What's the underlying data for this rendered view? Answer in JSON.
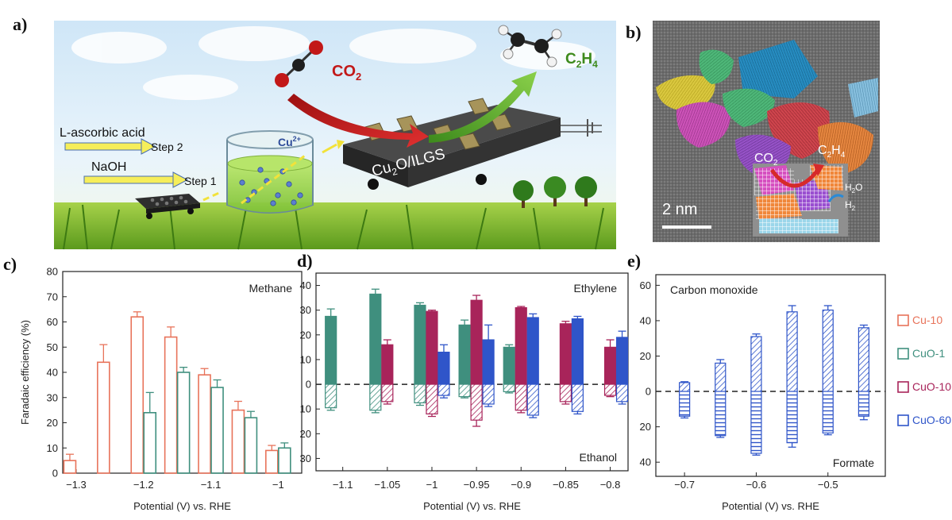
{
  "panels": {
    "a": "a)",
    "b": "b)",
    "c": "c)",
    "d": "d)",
    "e": "e)"
  },
  "scheme": {
    "co2_label": "CO",
    "co2_sub": "2",
    "c2h4_label": "C",
    "c2h4_sub1": "2",
    "c2h4_mid": "H",
    "c2h4_sub2": "4",
    "step2_reagent": "L-ascorbic acid",
    "step2_label": "Step 2",
    "step1_reagent": "NaOH",
    "step1_label": "Step 1",
    "cu_ion": "Cu",
    "cu_ion_sup": "2+",
    "cart_label_a": "Cu",
    "cart_label_sub": "2",
    "cart_label_b": "O/ILGS"
  },
  "tem": {
    "scale_bar": "2 nm",
    "co2": "CO",
    "co2_sub": "2",
    "c2h4": "C",
    "c2h4_sub": "2",
    "c2h4_h": "H",
    "c2h4_sub2": "4",
    "h2o": "H",
    "h2o_sub": "2",
    "h2o_o": "O",
    "h2": "H",
    "h2_sub": "2"
  },
  "legend": [
    {
      "label": "Cu-10",
      "color": "#e8735a"
    },
    {
      "label": "CuO-1",
      "color": "#3f8f7e"
    },
    {
      "label": "CuO-10",
      "color": "#a8245a"
    },
    {
      "label": "CuO-60",
      "color": "#2f55c9"
    }
  ],
  "chart_data": [
    {
      "id": "c",
      "type": "bar",
      "ylabel": "Faradaic efficiency (%)",
      "xlabel": "Potential (V) vs. RHE",
      "annotation": "Methane",
      "ylim": [
        0,
        80
      ],
      "yticks": [
        0,
        10,
        20,
        30,
        40,
        50,
        60,
        70,
        80
      ],
      "xlim": [
        -1.32,
        -0.965
      ],
      "xticks": [
        -1.3,
        -1.2,
        -1.1,
        -1
      ],
      "xtick_labels": [
        "−1.3",
        "−1.2",
        "−1.1",
        "−1"
      ],
      "series": [
        {
          "name": "Cu-10",
          "x": [
            -1.3,
            -1.25,
            -1.2,
            -1.15,
            -1.1,
            -1.05,
            -1.0
          ],
          "values": [
            5,
            44,
            62,
            54,
            39,
            25,
            9
          ],
          "errors": [
            2.5,
            7,
            2,
            4,
            2.5,
            3.5,
            2
          ]
        },
        {
          "name": "CuO-1",
          "x": [
            -1.2,
            -1.15,
            -1.1,
            -1.05,
            -1.0
          ],
          "values": [
            24,
            40,
            34,
            22,
            10
          ],
          "errors": [
            8,
            2,
            3,
            2.5,
            2
          ]
        }
      ]
    },
    {
      "id": "d",
      "type": "bar",
      "xlabel": "Potential (V) vs. RHE",
      "annotation_top": "Ethylene",
      "annotation_bottom": "Ethanol",
      "ylim": [
        -35,
        45
      ],
      "yticks": [
        -30,
        -20,
        -10,
        0,
        10,
        20,
        30,
        40
      ],
      "ytick_labels": [
        "30",
        "20",
        "10",
        "0",
        "10",
        "20",
        "30",
        "40"
      ],
      "xlim": [
        -1.13,
        -0.78
      ],
      "xticks": [
        -1.1,
        -1.05,
        -1,
        -0.95,
        -0.9,
        -0.85,
        -0.8
      ],
      "xtick_labels": [
        "−1.1",
        "−1.05",
        "−1",
        "−0.95",
        "−0.9",
        "−0.85",
        "−0.8"
      ],
      "series": [
        {
          "name": "CuO-1",
          "x": [
            -1.1,
            -1.05,
            -1.0,
            -0.95,
            -0.9
          ],
          "values": [
            27.5,
            36.5,
            32,
            24,
            15
          ],
          "errors": [
            3,
            2,
            1,
            2,
            1
          ]
        },
        {
          "name": "CuO-1 ethanol",
          "x": [
            -1.1,
            -1.05,
            -1.0,
            -0.95,
            -0.9
          ],
          "values": [
            -9.5,
            -10.5,
            -7.5,
            -5,
            -3
          ],
          "errors": [
            1,
            1,
            1,
            0.5,
            0.5
          ]
        },
        {
          "name": "CuO-10",
          "x": [
            -1.05,
            -1.0,
            -0.95,
            -0.9,
            -0.85,
            -0.8
          ],
          "values": [
            16,
            29.5,
            34,
            31,
            24.5,
            15
          ],
          "errors": [
            2,
            0.5,
            2,
            0.5,
            1,
            3
          ]
        },
        {
          "name": "CuO-10 ethanol",
          "x": [
            -1.05,
            -1.0,
            -0.95,
            -0.9,
            -0.85,
            -0.8
          ],
          "values": [
            -7,
            -12,
            -14.5,
            -10.5,
            -7,
            -4.5
          ],
          "errors": [
            1,
            1,
            2.5,
            1,
            1,
            0.5
          ]
        },
        {
          "name": "CuO-60",
          "x": [
            -1.0,
            -0.95,
            -0.9,
            -0.85,
            -0.8
          ],
          "values": [
            13,
            18,
            27,
            26.5,
            19
          ],
          "errors": [
            3,
            6,
            1.5,
            1,
            2.5
          ]
        },
        {
          "name": "CuO-60 ethanol",
          "x": [
            -1.0,
            -0.95,
            -0.9,
            -0.85,
            -0.8
          ],
          "values": [
            -4.5,
            -8,
            -12.5,
            -11,
            -7
          ],
          "errors": [
            1,
            1,
            1,
            1,
            1
          ]
        }
      ]
    },
    {
      "id": "e",
      "type": "bar",
      "xlabel": "Potential (V) vs. RHE",
      "annotation_top": "Carbon monoxide",
      "annotation_bottom": "Formate",
      "ylim": [
        -48,
        66
      ],
      "yticks": [
        -40,
        -20,
        0,
        20,
        40,
        60
      ],
      "ytick_labels": [
        "40",
        "20",
        "0",
        "20",
        "40",
        "60"
      ],
      "xlim": [
        -0.74,
        -0.42
      ],
      "xticks": [
        -0.7,
        -0.6,
        -0.5
      ],
      "xtick_labels": [
        "−0.7",
        "−0.6",
        "−0.5"
      ],
      "series": [
        {
          "name": "CuO-60 carbon monoxide",
          "x": [
            -0.7,
            -0.65,
            -0.6,
            -0.55,
            -0.5,
            -0.45
          ],
          "values": [
            5,
            16,
            31,
            45,
            46,
            36
          ],
          "errors": [
            0.5,
            2,
            1.5,
            3.5,
            2.5,
            1.5
          ]
        },
        {
          "name": "CuO-60 formate",
          "x": [
            -0.7,
            -0.65,
            -0.6,
            -0.55,
            -0.5,
            -0.45
          ],
          "values": [
            -14,
            -25,
            -35,
            -29,
            -23.5,
            -14
          ],
          "errors": [
            1,
            1,
            1,
            2.5,
            1,
            2
          ]
        }
      ]
    }
  ]
}
